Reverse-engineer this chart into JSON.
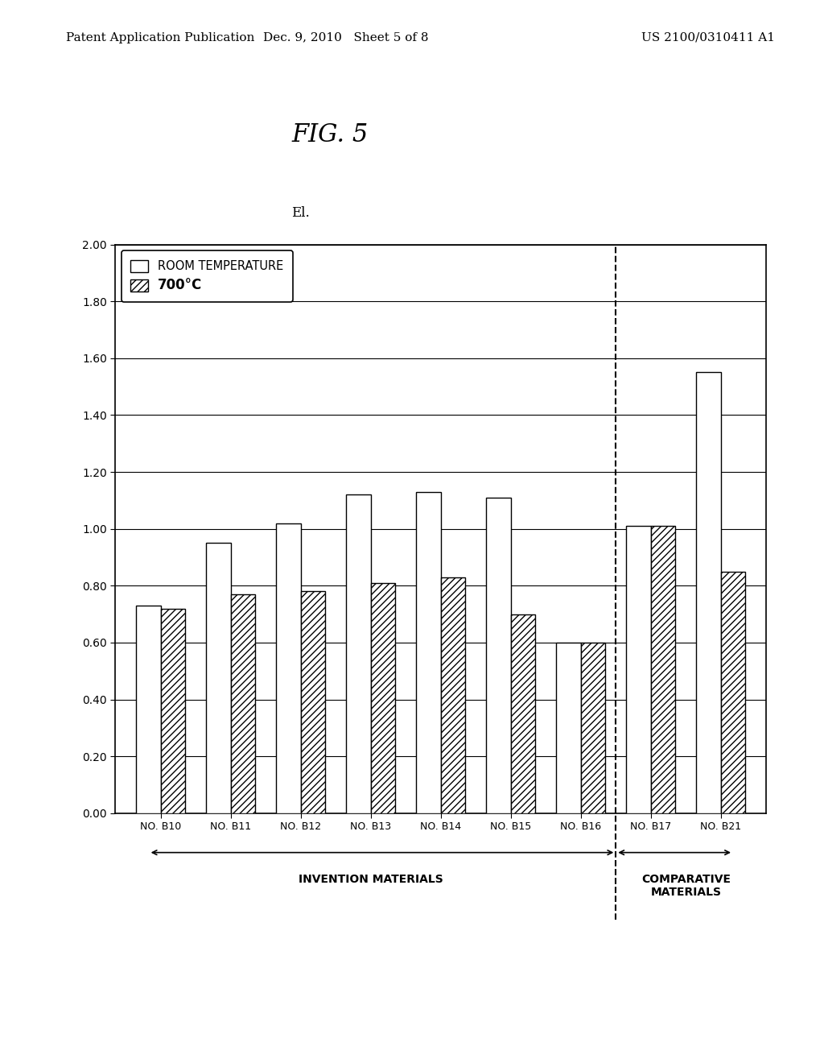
{
  "title": "FIG. 5",
  "ylabel": "El.",
  "categories": [
    "NO. B10",
    "NO. B11",
    "NO. B12",
    "NO. B13",
    "NO. B14",
    "NO. B15",
    "NO. B16",
    "NO. B17",
    "NO. B21"
  ],
  "room_temp": [
    0.73,
    0.95,
    1.02,
    1.12,
    1.13,
    1.11,
    0.6,
    1.01,
    1.55
  ],
  "hot_temp": [
    0.72,
    0.77,
    0.78,
    0.81,
    0.83,
    0.7,
    0.6,
    1.01,
    0.85
  ],
  "ylim": [
    0.0,
    2.0
  ],
  "yticks": [
    0.0,
    0.2,
    0.4,
    0.6,
    0.8,
    1.0,
    1.2,
    1.4,
    1.6,
    1.8,
    2.0
  ],
  "bar_color_rt": "#ffffff",
  "bar_edgecolor": "#000000",
  "hatch_ht": "////",
  "legend_rt_label": "ROOM TEMPERATURE",
  "legend_ht_label": "700°C",
  "invention_label": "INVENTION MATERIALS",
  "comparative_label": "COMPARATIVE\nMATERIALS",
  "header_left": "Patent Application Publication",
  "header_mid": "Dec. 9, 2010   Sheet 5 of 8",
  "header_right": "US 2100/0310411 A1"
}
